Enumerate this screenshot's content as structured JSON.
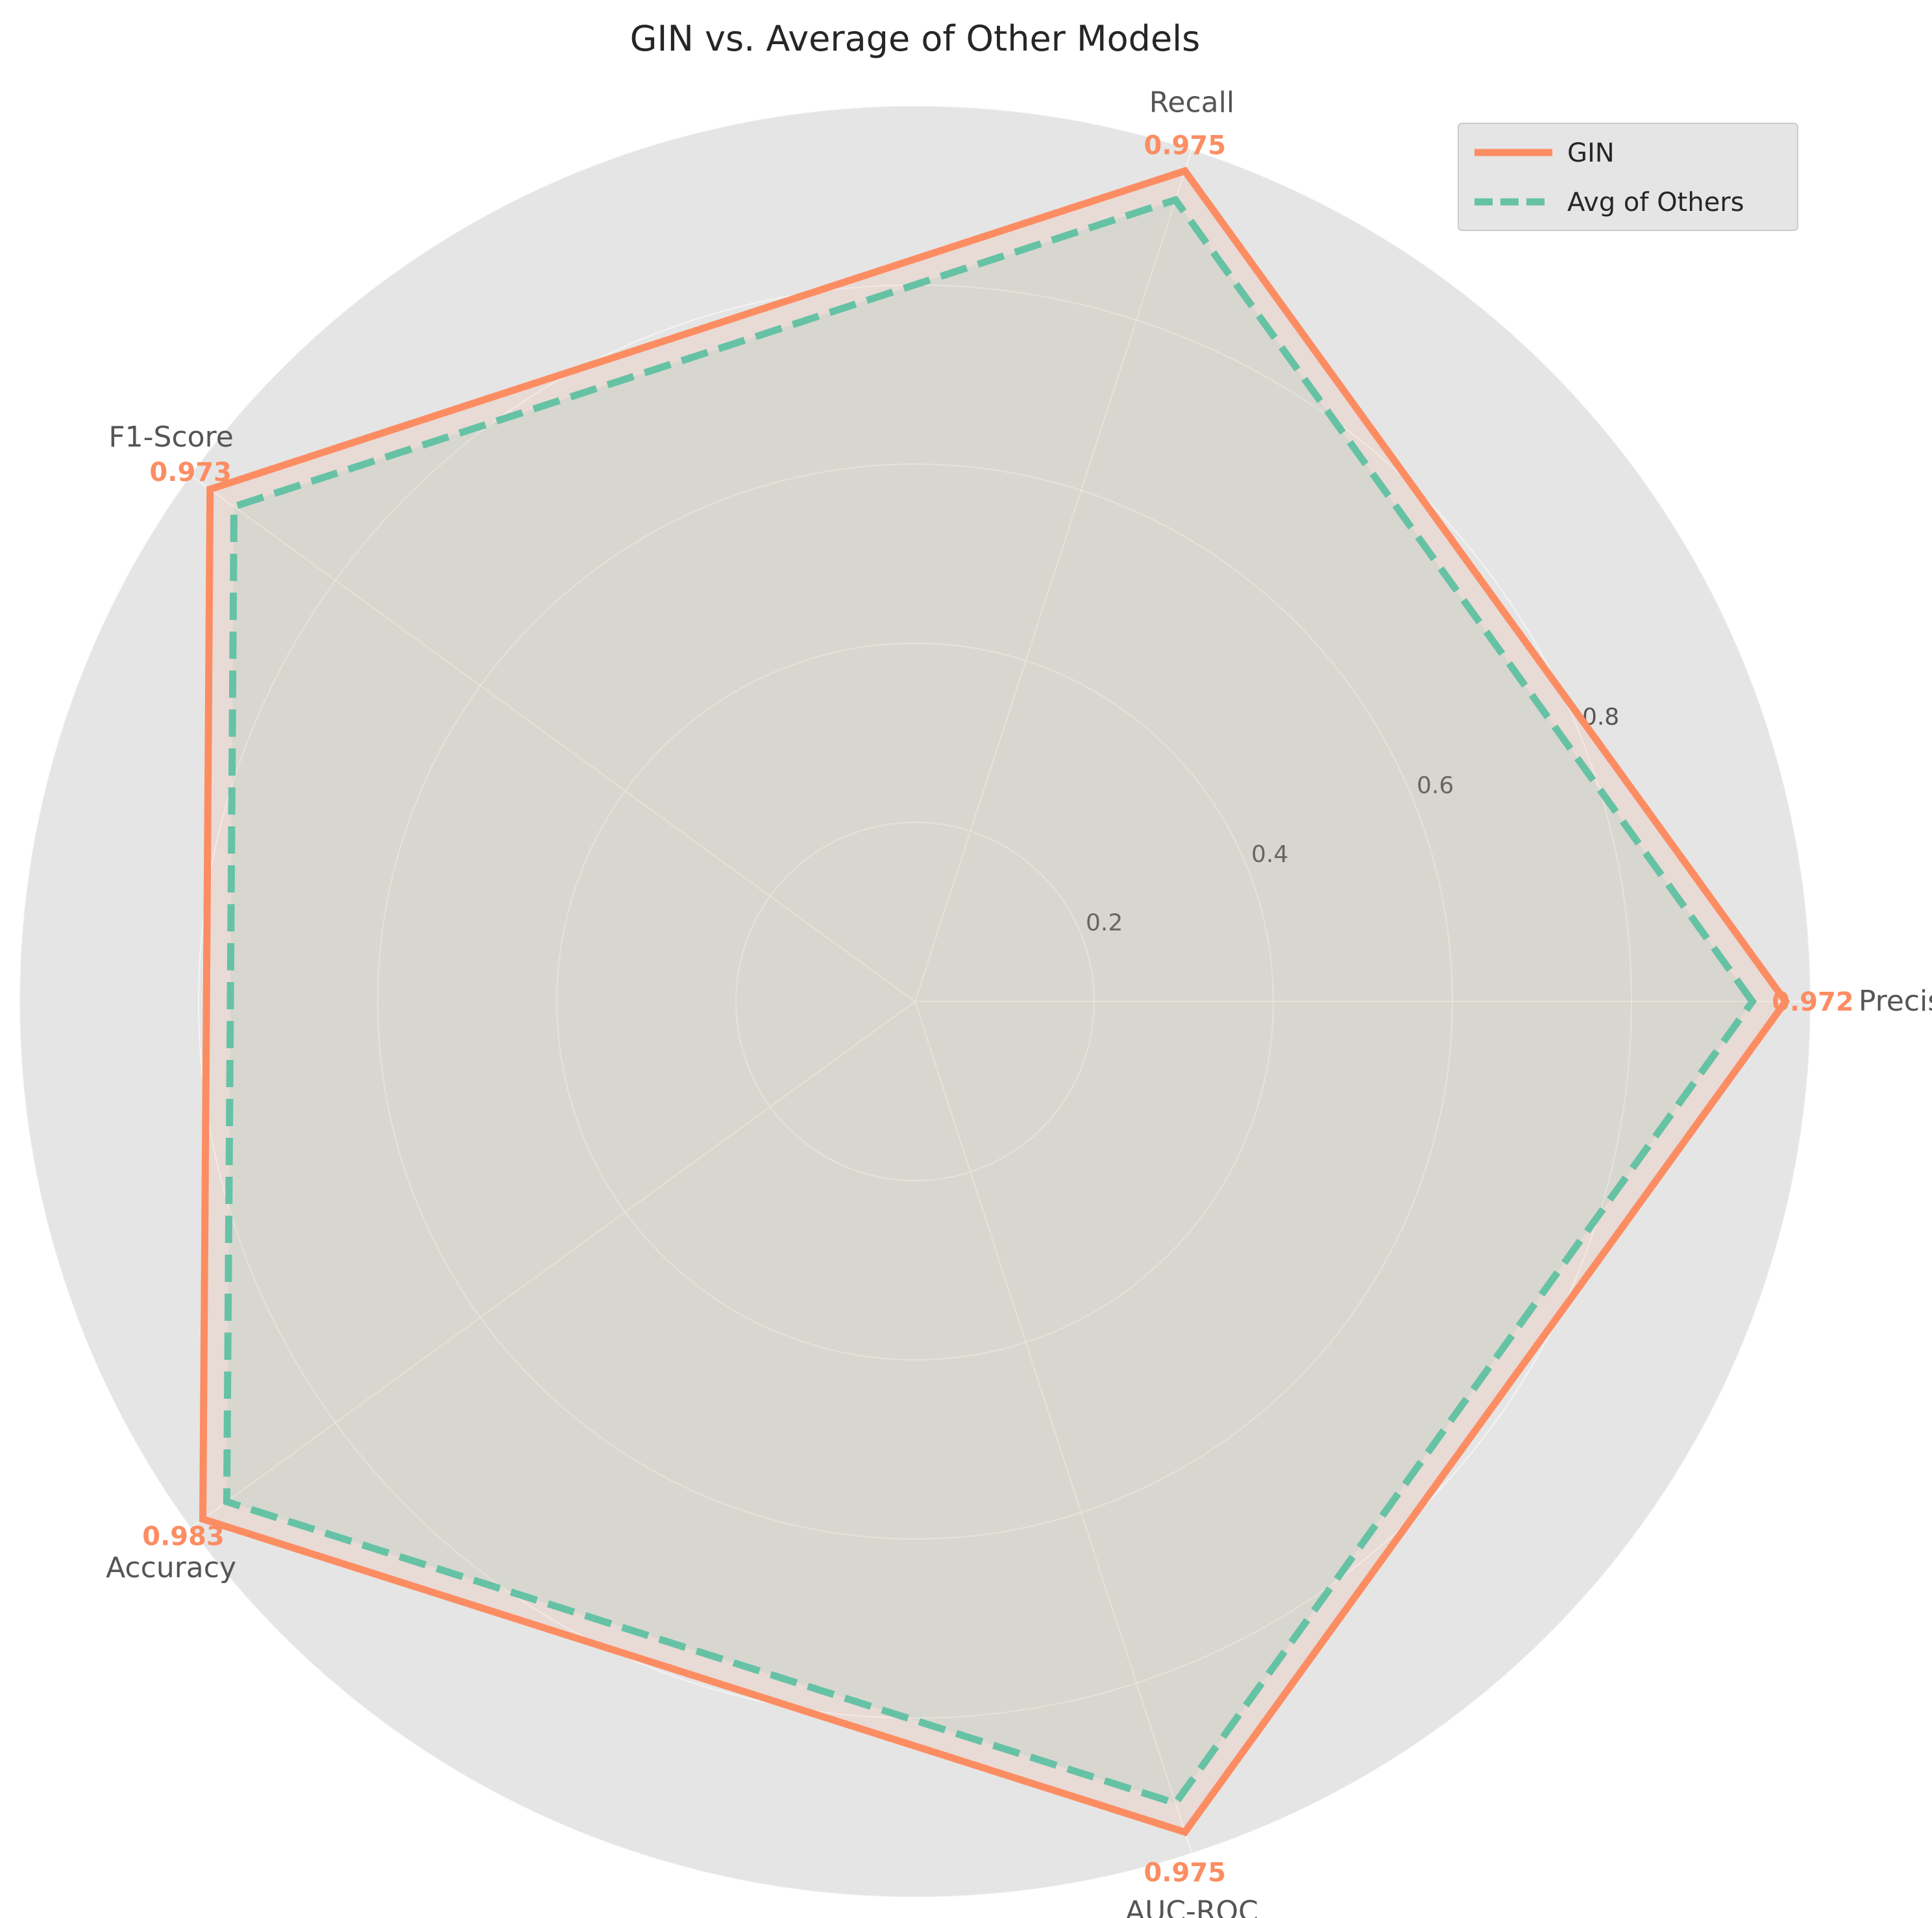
{
  "chart_data": {
    "type": "radar",
    "title": "GIN vs. Average of Other Models",
    "axes": [
      "Precision",
      "Recall",
      "F1-Score",
      "Accuracy",
      "AUC-ROC"
    ],
    "rlim": [
      0,
      1
    ],
    "rticks": [
      0.2,
      0.4,
      0.6,
      0.8
    ],
    "rtick_labels": [
      "0.2",
      "0.4",
      "0.6",
      "0.8"
    ],
    "grid": true,
    "legend_position": "top-right",
    "series": [
      {
        "name": "GIN",
        "values": [
          0.972,
          0.975,
          0.973,
          0.983,
          0.975
        ],
        "value_labels": [
          "0.972",
          "0.975",
          "0.973",
          "0.983",
          "0.975"
        ],
        "color": "#fc8d62",
        "line_style": "solid"
      },
      {
        "name": "Avg of Others",
        "values": [
          0.935,
          0.941,
          0.94,
          0.95,
          0.941
        ],
        "color": "#66c2a5",
        "line_style": "dashed"
      }
    ]
  }
}
